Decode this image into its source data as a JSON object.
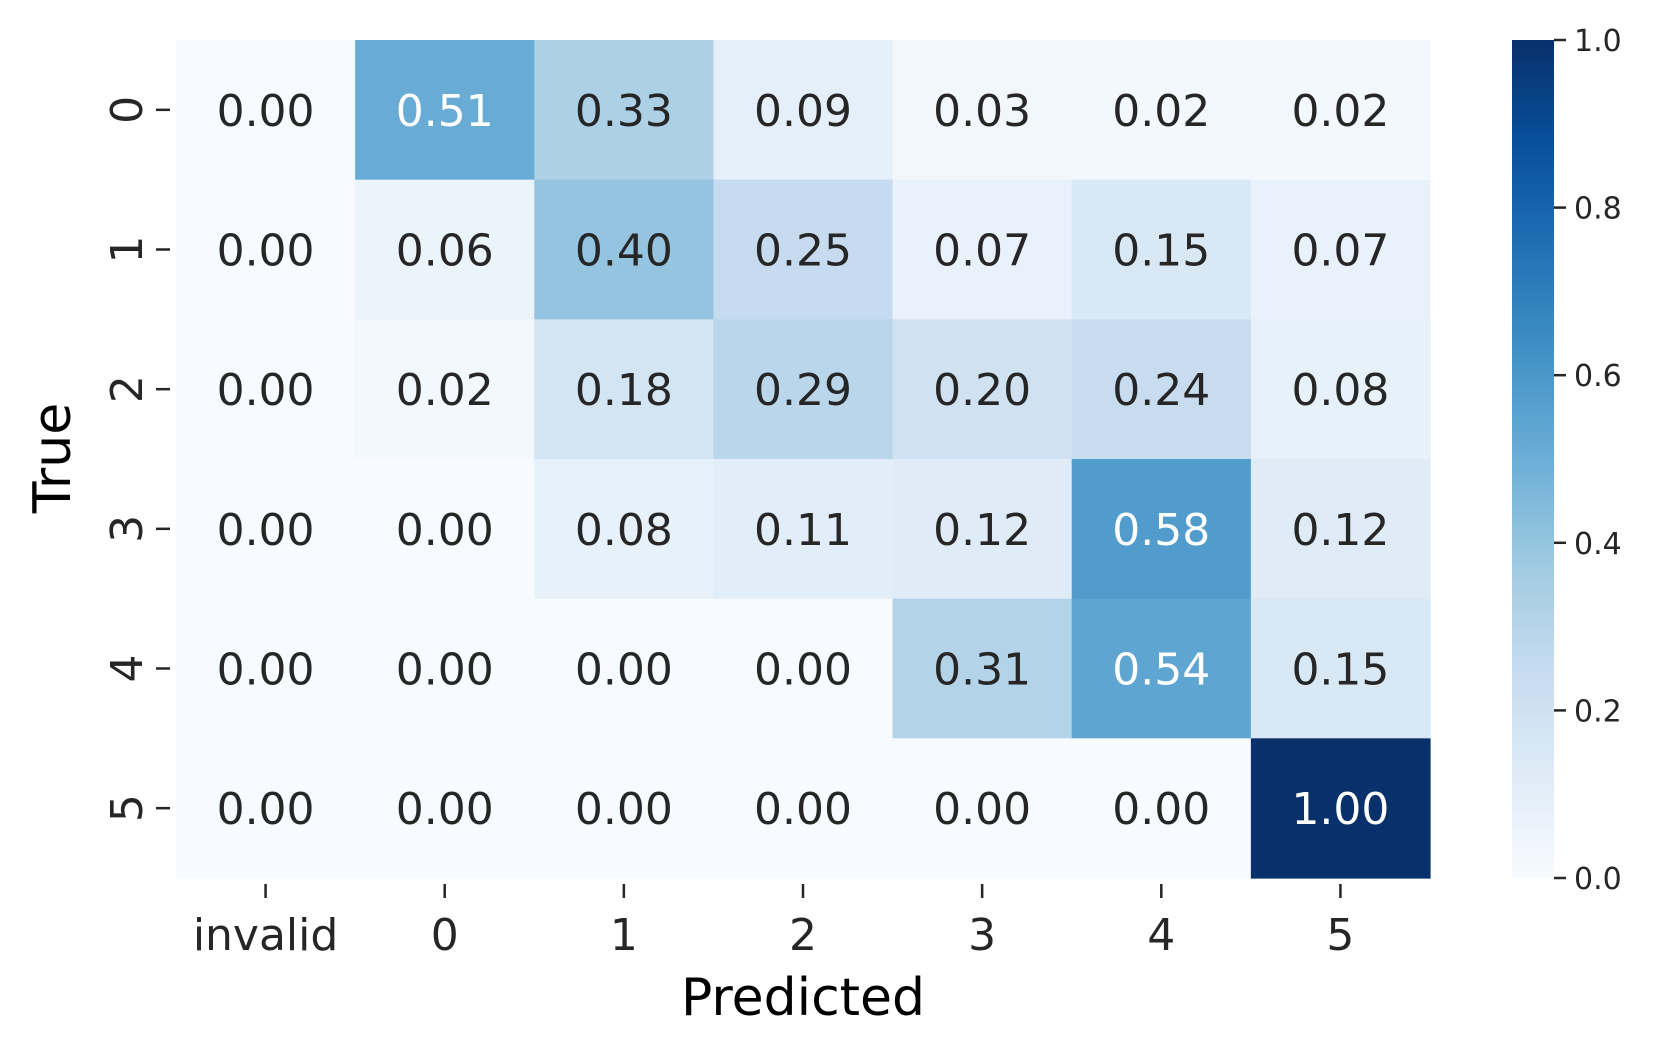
{
  "chart_data": {
    "type": "heatmap",
    "title": "",
    "xlabel": "Predicted",
    "ylabel": "True",
    "x_categories": [
      "invalid",
      "0",
      "1",
      "2",
      "3",
      "4",
      "5"
    ],
    "y_categories": [
      "0",
      "1",
      "2",
      "3",
      "4",
      "5"
    ],
    "values": [
      [
        0.0,
        0.51,
        0.33,
        0.09,
        0.03,
        0.02,
        0.02
      ],
      [
        0.0,
        0.06,
        0.4,
        0.25,
        0.07,
        0.15,
        0.07
      ],
      [
        0.0,
        0.02,
        0.18,
        0.29,
        0.2,
        0.24,
        0.08
      ],
      [
        0.0,
        0.0,
        0.08,
        0.11,
        0.12,
        0.58,
        0.12
      ],
      [
        0.0,
        0.0,
        0.0,
        0.0,
        0.31,
        0.54,
        0.15
      ],
      [
        0.0,
        0.0,
        0.0,
        0.0,
        0.0,
        0.0,
        1.0
      ]
    ],
    "colormap": "Blues",
    "value_range": [
      0.0,
      1.0
    ],
    "colorbar_ticks": [
      "0.0",
      "0.2",
      "0.4",
      "0.6",
      "0.8",
      "1.0"
    ],
    "grid": false
  }
}
